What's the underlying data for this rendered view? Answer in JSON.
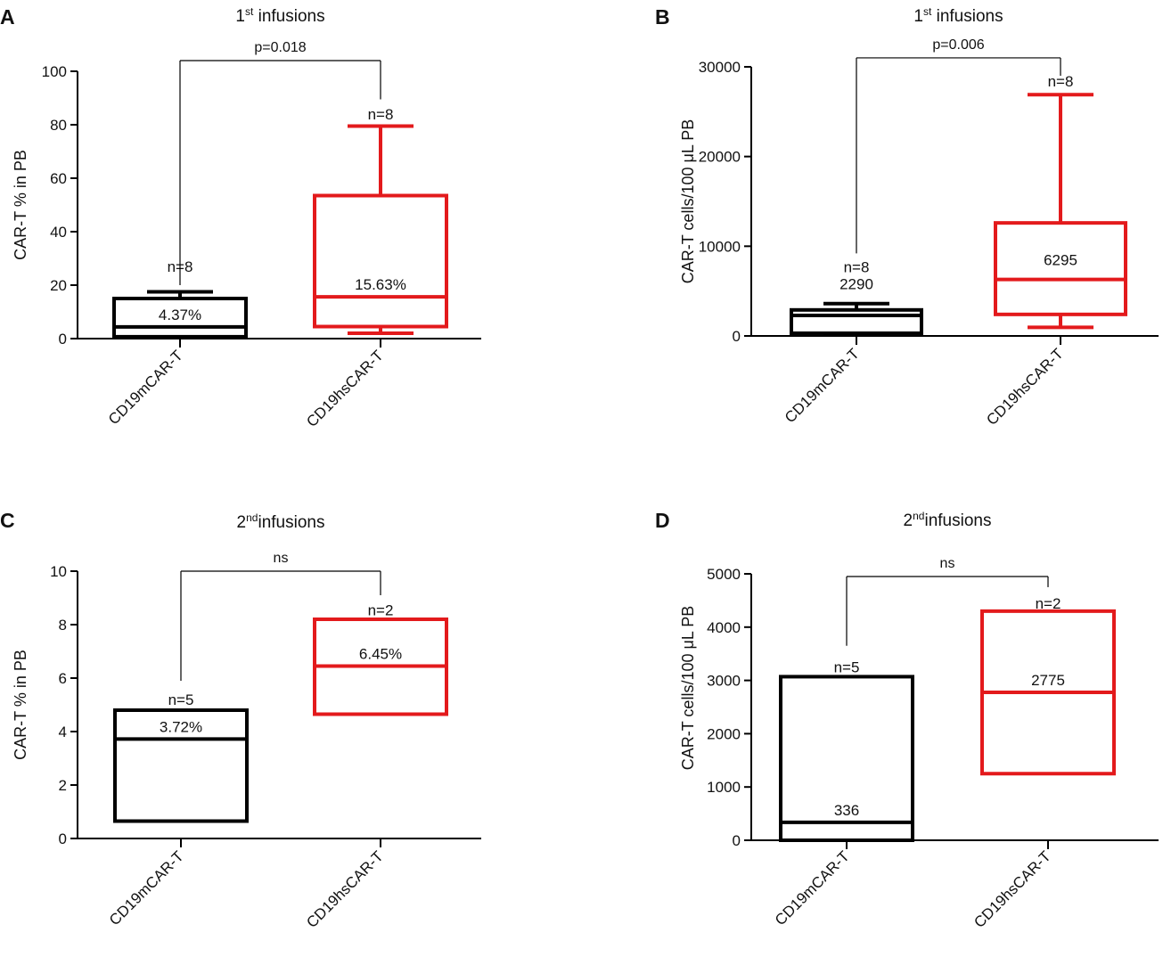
{
  "figure": {
    "panels": [
      "A",
      "B",
      "C",
      "D"
    ]
  },
  "chart_data": [
    {
      "id": "A",
      "type": "box",
      "panel_label": "A",
      "title_prefix": "1",
      "title_sup": "st",
      "title_suffix": " infusions",
      "ylabel": "CAR-T % in PB",
      "xlabel": "",
      "ylim": [
        0,
        100
      ],
      "yticks": [
        0,
        20,
        40,
        60,
        80,
        100
      ],
      "ytick_labels": [
        "0",
        "20",
        "40",
        "60",
        "80",
        "100"
      ],
      "categories": [
        "CD19mCAR-T",
        "CD19hsCAR-T"
      ],
      "series": [
        {
          "name": "CD19mCAR-T",
          "color": "#000000",
          "whisker_low": 0.5,
          "q1": 0.7,
          "median": 4.37,
          "q3": 15,
          "whisker_high": 17.5,
          "median_label": "4.37%",
          "n_label": "n=8",
          "n_value": 27
        },
        {
          "name": "CD19hsCAR-T",
          "color": "#e31a1c",
          "whisker_low": 2,
          "q1": 4.5,
          "median": 15.63,
          "q3": 53.5,
          "whisker_high": 79.5,
          "median_label": "15.63%",
          "n_label": "n=8",
          "n_value": 84
        }
      ],
      "significance": {
        "label": "p=0.018",
        "y": 104,
        "left_drop": 20,
        "right_drop": 89.5
      }
    },
    {
      "id": "B",
      "type": "box",
      "panel_label": "B",
      "title_prefix": "1",
      "title_sup": "st",
      "title_suffix": " infusions",
      "ylabel": "CAR-T  cells/100  μL PB",
      "xlabel": "",
      "ylim": [
        0,
        30000
      ],
      "yticks": [
        0,
        10000,
        20000,
        30000
      ],
      "ytick_labels": [
        "0",
        "10000",
        "20000",
        "30000"
      ],
      "categories": [
        "CD19mCAR-T",
        "CD19hsCAR-T"
      ],
      "series": [
        {
          "name": "CD19mCAR-T",
          "color": "#000000",
          "whisker_low": 200,
          "q1": 300,
          "median": 2290,
          "q3": 2900,
          "whisker_high": 3600,
          "median_label": "2290",
          "n_label": "n=8",
          "n_value": 7700,
          "median_label_value": 5200
        },
        {
          "name": "CD19hsCAR-T",
          "color": "#e31a1c",
          "whisker_low": 950,
          "q1": 2400,
          "median": 6295,
          "q3": 12600,
          "whisker_high": 26900,
          "median_label": "6295",
          "n_label": "n=8",
          "n_value": 28400,
          "median_label_value": 7900
        }
      ],
      "significance": {
        "label": "p=0.006",
        "y": 31000,
        "left_drop": 9200,
        "right_drop": 29000
      }
    },
    {
      "id": "C",
      "type": "box",
      "panel_label": "C",
      "title_prefix": "2",
      "title_sup": "nd",
      "title_suffix": "infusions",
      "ylabel": "CAR-T % in PB",
      "xlabel": "",
      "ylim": [
        0,
        10
      ],
      "yticks": [
        0,
        2,
        4,
        6,
        8,
        10
      ],
      "ytick_labels": [
        "0",
        "2",
        "4",
        "6",
        "8",
        "10"
      ],
      "categories": [
        "CD19mCAR-T",
        "CD19hsCAR-T"
      ],
      "series": [
        {
          "name": "CD19mCAR-T",
          "color": "#000000",
          "whisker_low": 0.65,
          "q1": 0.65,
          "median": 3.72,
          "q3": 4.8,
          "whisker_high": 4.8,
          "median_label": "3.72%",
          "n_label": "n=5",
          "n_value": 5.2
        },
        {
          "name": "CD19hsCAR-T",
          "color": "#e31a1c",
          "whisker_low": 4.65,
          "q1": 4.65,
          "median": 6.45,
          "q3": 8.2,
          "whisker_high": 8.2,
          "median_label": "6.45%",
          "n_label": "n=2",
          "n_value": 8.55
        }
      ],
      "significance": {
        "label": "ns",
        "y": 10,
        "left_drop": 5.9,
        "right_drop": 9.1
      }
    },
    {
      "id": "D",
      "type": "box",
      "panel_label": "D",
      "title_prefix": "2",
      "title_sup": "nd",
      "title_suffix": "infusions",
      "ylabel": "CAR-T  cells/100 μL PB",
      "xlabel": "",
      "ylim": [
        0,
        5000
      ],
      "yticks": [
        0,
        1000,
        2000,
        3000,
        4000,
        5000
      ],
      "ytick_labels": [
        "0",
        "1000",
        "2000",
        "3000",
        "4000",
        "5000"
      ],
      "categories": [
        "CD19mCAR-T",
        "CD19hsCAR-T"
      ],
      "series": [
        {
          "name": "CD19mCAR-T",
          "color": "#000000",
          "whisker_low": 0,
          "q1": 0,
          "median": 336,
          "q3": 3070,
          "whisker_high": 3070,
          "median_label": "336",
          "n_label": "n=5",
          "n_value": 3250
        },
        {
          "name": "CD19hsCAR-T",
          "color": "#e31a1c",
          "whisker_low": 1250,
          "q1": 1250,
          "median": 2775,
          "q3": 4300,
          "whisker_high": 4300,
          "median_label": "2775",
          "n_label": "n=2",
          "n_value": 4450
        }
      ],
      "significance": {
        "label": "ns",
        "y": 4950,
        "left_drop": 3650,
        "right_drop": 4750
      }
    }
  ]
}
